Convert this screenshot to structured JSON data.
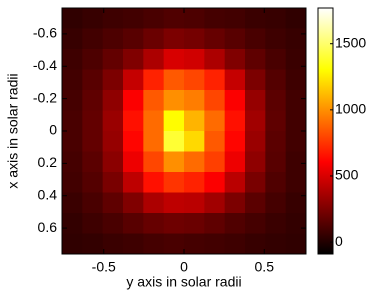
{
  "chart_data": {
    "type": "heatmap",
    "colormap": "hot",
    "xlabel": "y axis in solar radii",
    "ylabel": "x axis in solar radii",
    "xlim": [
      -0.76,
      0.76
    ],
    "ylim": [
      -0.76,
      0.76
    ],
    "y_reversed": true,
    "xticks": [
      -0.5,
      0,
      0.5
    ],
    "yticks": [
      -0.6,
      -0.4,
      -0.2,
      0,
      0.2,
      0.4,
      0.6
    ],
    "clim": [
      -90,
      1770
    ],
    "colorbar_ticks": [
      0,
      500,
      1000,
      1500
    ],
    "z": [
      [
        40,
        60,
        80,
        90,
        110,
        130,
        120,
        100,
        90,
        70,
        60,
        40
      ],
      [
        60,
        90,
        120,
        150,
        200,
        250,
        230,
        190,
        150,
        110,
        80,
        60
      ],
      [
        80,
        120,
        180,
        260,
        380,
        500,
        480,
        380,
        260,
        170,
        110,
        70
      ],
      [
        90,
        150,
        250,
        450,
        700,
        850,
        800,
        700,
        450,
        250,
        140,
        80
      ],
      [
        100,
        170,
        300,
        600,
        850,
        1000,
        950,
        800,
        600,
        320,
        160,
        90
      ],
      [
        110,
        180,
        330,
        650,
        900,
        1300,
        1100,
        900,
        650,
        350,
        170,
        90
      ],
      [
        110,
        180,
        320,
        620,
        900,
        1400,
        1200,
        850,
        620,
        330,
        160,
        90
      ],
      [
        100,
        160,
        290,
        560,
        800,
        1000,
        900,
        780,
        560,
        300,
        150,
        80
      ],
      [
        90,
        140,
        240,
        430,
        650,
        750,
        700,
        600,
        420,
        240,
        130,
        80
      ],
      [
        70,
        110,
        170,
        260,
        380,
        430,
        420,
        350,
        250,
        160,
        100,
        60
      ],
      [
        50,
        80,
        110,
        150,
        190,
        210,
        200,
        170,
        130,
        100,
        70,
        50
      ],
      [
        40,
        50,
        70,
        80,
        100,
        110,
        100,
        90,
        80,
        60,
        50,
        40
      ]
    ]
  }
}
